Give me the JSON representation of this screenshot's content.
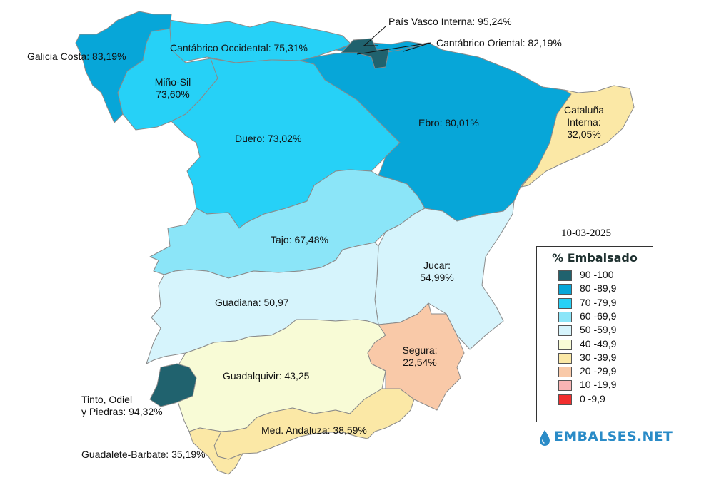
{
  "date": "10-03-2025",
  "regions": {
    "galicia": {
      "label": "Galicia Costa: 83,19%",
      "percent": 83.19,
      "color": "#07a6d8"
    },
    "cantabrico_occ": {
      "label": "Cantábrico Occidental: 75,31%",
      "percent": 75.31,
      "color": "#26d1f7"
    },
    "mino_sil": {
      "label_line1": "Miño-Sil",
      "label_line2": "73,60%",
      "percent": 73.6,
      "color": "#26d1f7"
    },
    "duero": {
      "label": "Duero: 73,02%",
      "percent": 73.02,
      "color": "#26d1f7"
    },
    "pais_vasco": {
      "label": "País Vasco Interna: 95,24%",
      "percent": 95.24,
      "color": "#20626e"
    },
    "cantabrico_or": {
      "label": "Cantábrico Oriental: 82,19%",
      "percent": 82.19,
      "color": "#07a6d8"
    },
    "ebro": {
      "label": "Ebro: 80,01%",
      "percent": 80.01,
      "color": "#07a6d8"
    },
    "cataluna": {
      "label_line1": "Cataluña",
      "label_line2": "Interna:",
      "label_line3": "32,05%",
      "percent": 32.05,
      "color": "#fbe8a6"
    },
    "tajo": {
      "label": "Tajo: 67,48%",
      "percent": 67.48,
      "color": "#8be5f8"
    },
    "jucar": {
      "label_line1": "Jucar:",
      "label_line2": "54,99%",
      "percent": 54.99,
      "color": "#d6f4fc"
    },
    "guadiana": {
      "label": "Guadiana: 50,97",
      "percent": 50.97,
      "color": "#d6f4fc"
    },
    "segura": {
      "label_line1": "Segura:",
      "label_line2": "22,54%",
      "percent": 22.54,
      "color": "#f9c9a8"
    },
    "guadalquivir": {
      "label": "Guadalquivir: 43,25",
      "percent": 43.25,
      "color": "#f8fbd6"
    },
    "tinto": {
      "label_line1": "Tinto, Odiel",
      "label_line2": "y Piedras: 94,32%",
      "percent": 94.32,
      "color": "#20626e"
    },
    "med_andaluza": {
      "label": "Med. Andaluza: 38,59%",
      "percent": 38.59,
      "color": "#fbe8a6"
    },
    "guadalete": {
      "label": "Guadalete-Barbate: 35,19%",
      "percent": 35.19,
      "color": "#fbe8a6"
    }
  },
  "legend": {
    "title": "% Embalsado",
    "items": [
      {
        "label": "90 -100",
        "color": "#20626e"
      },
      {
        "label": "80 -89,9",
        "color": "#07a6d8"
      },
      {
        "label": "70 -79,9",
        "color": "#26d1f7"
      },
      {
        "label": "60 -69,9",
        "color": "#8be5f8"
      },
      {
        "label": "50 -59,9",
        "color": "#d6f4fc"
      },
      {
        "label": "40 -49,9",
        "color": "#f8fbd6"
      },
      {
        "label": "30 -39,9",
        "color": "#fbe8a6"
      },
      {
        "label": "20 -29,9",
        "color": "#f9c9a8"
      },
      {
        "label": "10 -19,9",
        "color": "#f8b4b4"
      },
      {
        "label": "0 -9,9",
        "color": "#f22e2e"
      }
    ]
  },
  "brand": {
    "text": "EMBALSES.NET",
    "icon": "water-drop-icon",
    "color": "#2a8bc7"
  }
}
